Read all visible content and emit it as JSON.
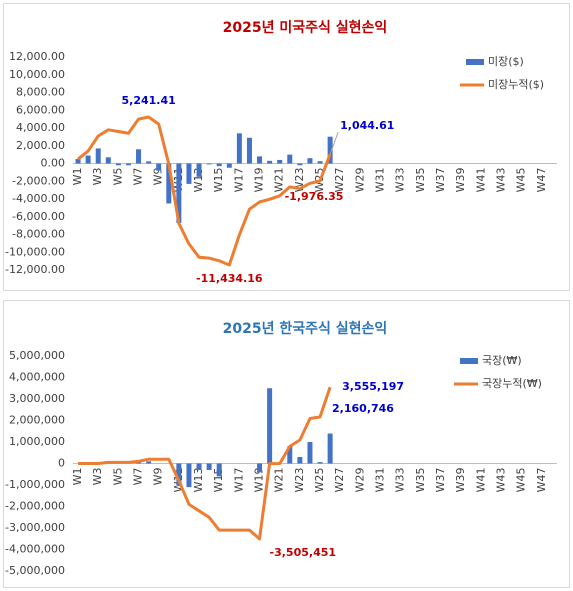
{
  "chart_data": [
    {
      "type": "combo",
      "title": "2025년 미국주식 실현손익",
      "title_color": "#c00000",
      "categories": [
        "W1",
        null,
        "W3",
        null,
        "W5",
        null,
        "W7",
        null,
        "W9",
        null,
        "W11",
        null,
        "W13",
        null,
        "W15",
        null,
        "W17",
        null,
        "W19",
        null,
        "W21",
        null,
        "W23",
        null,
        "W25",
        null,
        "W27",
        null,
        "W29",
        null,
        "W31",
        null,
        "W33",
        null,
        "W35",
        null,
        "W37",
        null,
        "W39",
        null,
        "W41",
        null,
        "W43",
        null,
        "W45",
        null,
        "W47",
        null
      ],
      "ylim": [
        -12000,
        12000
      ],
      "yticks": [
        {
          "value": -12000,
          "label": "-12,000.00"
        },
        {
          "value": -10000,
          "label": "-10,000.00"
        },
        {
          "value": -8000,
          "label": "-8,000.00"
        },
        {
          "value": -6000,
          "label": "-6,000.00"
        },
        {
          "value": -4000,
          "label": "-4,000.00"
        },
        {
          "value": -2000,
          "label": "-2,000.00"
        },
        {
          "value": 0,
          "label": "0.00"
        },
        {
          "value": 2000,
          "label": "2,000.00"
        },
        {
          "value": 4000,
          "label": "4,000.00"
        },
        {
          "value": 6000,
          "label": "6,000.00"
        },
        {
          "value": 8000,
          "label": "8,000.00"
        },
        {
          "value": 10000,
          "label": "10,000.00"
        },
        {
          "value": 12000,
          "label": "12,000.00"
        }
      ],
      "grid": false,
      "legend": "top-right",
      "series": [
        {
          "name": "미장($)",
          "type": "bar",
          "color": "#4472c4",
          "values": [
            500,
            900,
            1700,
            700,
            -200,
            -200,
            1600,
            241.41,
            -800,
            -4500,
            -6700,
            -2300,
            -1500,
            -100,
            -300,
            -475.57,
            3400,
            2900,
            800,
            300,
            400,
            1000,
            -200,
            600,
            257.81,
            3020.96,
            null,
            null,
            null,
            null,
            null,
            null,
            null,
            null,
            null,
            null,
            null,
            null,
            null,
            null,
            null,
            null,
            null,
            null,
            null,
            null,
            null,
            null
          ]
        },
        {
          "name": "미장누적($)",
          "type": "line",
          "color": "#ed7d31",
          "values": [
            500,
            1400,
            3100,
            3800,
            3600,
            3400,
            5000,
            5241.41,
            4441.41,
            -58.59,
            -6758.59,
            -9058.59,
            -10558.59,
            -10658.59,
            -10958.59,
            -11434.16,
            -8034.16,
            -5134.16,
            -4334.16,
            -4034.16,
            -3634.16,
            -2634.16,
            -2834.16,
            -2234.16,
            -1976.35,
            1044.61,
            null,
            null,
            null,
            null,
            null,
            null,
            null,
            null,
            null,
            null,
            null,
            null,
            null,
            null,
            null,
            null,
            null,
            null,
            null,
            null,
            null,
            null
          ],
          "value_labels": [
            null,
            null,
            null,
            null,
            null,
            null,
            null,
            "5,241.41",
            null,
            null,
            null,
            null,
            null,
            null,
            null,
            "-11,434.16",
            null,
            null,
            null,
            null,
            null,
            null,
            null,
            null,
            "-1,976.35",
            "1,044.61",
            null,
            null,
            null,
            null,
            null,
            null,
            null,
            null,
            null,
            null,
            null,
            null,
            null,
            null,
            null,
            null,
            null,
            null,
            null,
            null,
            null,
            null
          ]
        }
      ]
    },
    {
      "type": "combo",
      "title": "2025년 한국주식 실현손익",
      "title_color": "#2e75b6",
      "categories": [
        "W1",
        null,
        "W3",
        null,
        "W5",
        null,
        "W7",
        null,
        "W9",
        null,
        "W11",
        null,
        "W13",
        null,
        "W15",
        null,
        "W17",
        null,
        "W19",
        null,
        "W21",
        null,
        "W23",
        null,
        "W25",
        null,
        "W27",
        null,
        "W29",
        null,
        "W31",
        null,
        "W33",
        null,
        "W35",
        null,
        "W37",
        null,
        "W39",
        null,
        "W41",
        null,
        "W43",
        null,
        "W45",
        null,
        "W47",
        null
      ],
      "ylim": [
        -5000000,
        5000000
      ],
      "yticks": [
        {
          "value": -5000000,
          "label": "-5,000,000"
        },
        {
          "value": -4000000,
          "label": "-4,000,000"
        },
        {
          "value": -3000000,
          "label": "-3,000,000"
        },
        {
          "value": -2000000,
          "label": "-2,000,000"
        },
        {
          "value": -1000000,
          "label": "-1,000,000"
        },
        0,
        {
          "value": 1000000,
          "label": "1,000,000"
        },
        {
          "value": 2000000,
          "label": "2,000,000"
        },
        {
          "value": 3000000,
          "label": "3,000,000"
        },
        {
          "value": 4000000,
          "label": "4,000,000"
        },
        {
          "value": 5000000,
          "label": "5,000,000"
        }
      ],
      "grid": false,
      "legend": "top-right",
      "series": [
        {
          "name": "국장(₩)",
          "type": "bar",
          "color": "#4472c4",
          "values": [
            0,
            0,
            0,
            50000,
            0,
            0,
            50000,
            100000,
            0,
            0,
            -1000000,
            -1100000,
            -300000,
            -300000,
            -600000,
            0,
            0,
            0,
            -405451,
            3500000,
            0,
            800000,
            300000,
            1000000,
            66197,
            1394451,
            null,
            null,
            null,
            null,
            null,
            null,
            null,
            null,
            null,
            null,
            null,
            null,
            null,
            null,
            null,
            null,
            null,
            null,
            null,
            null,
            null,
            null
          ]
        },
        {
          "name": "국장누적(₩)",
          "type": "line",
          "color": "#ed7d31",
          "values": [
            0,
            0,
            0,
            50000,
            50000,
            50000,
            100000,
            200000,
            200000,
            200000,
            -800000,
            -1900000,
            -2200000,
            -2500000,
            -3100000,
            -3100000,
            -3100000,
            -3100000,
            -3505451,
            -5451,
            -5451,
            794549,
            1094549,
            2094549,
            2160746,
            3555197,
            null,
            null,
            null,
            null,
            null,
            null,
            null,
            null,
            null,
            null,
            null,
            null,
            null,
            null,
            null,
            null,
            null,
            null,
            null,
            null,
            null,
            null
          ],
          "value_labels": [
            null,
            null,
            null,
            null,
            null,
            null,
            null,
            null,
            null,
            null,
            null,
            null,
            null,
            null,
            null,
            null,
            null,
            null,
            "-3,505,451",
            null,
            null,
            null,
            null,
            null,
            "2,160,746",
            "3,555,197",
            null,
            null,
            null,
            null,
            null,
            null,
            null,
            null,
            null,
            null,
            null,
            null,
            null,
            null,
            null,
            null,
            null,
            null,
            null,
            null,
            null,
            null
          ]
        }
      ]
    }
  ]
}
